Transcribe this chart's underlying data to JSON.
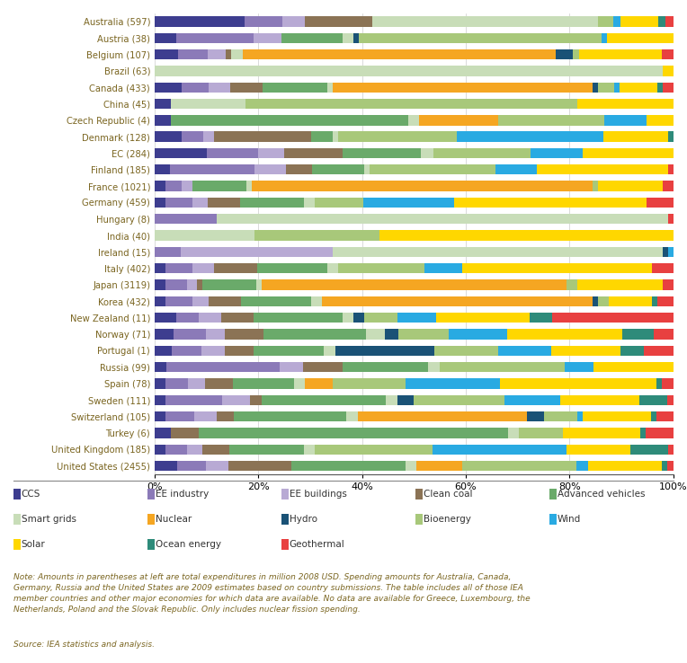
{
  "countries": [
    "Australia (597)",
    "Austria (38)",
    "Belgium (107)",
    "Brazil (63)",
    "Canada (433)",
    "China (45)",
    "Czech Republic (4)",
    "Denmark (128)",
    "EC (284)",
    "Finland (185)",
    "France (1021)",
    "Germany (459)",
    "Hungary (8)",
    "India (40)",
    "Ireland (15)",
    "Italy (402)",
    "Japan (3119)",
    "Korea (432)",
    "New Zealand (11)",
    "Norway (71)",
    "Portugal (1)",
    "Russia (99)",
    "Spain (78)",
    "Sweden (111)",
    "Switzerland (105)",
    "Turkey (6)",
    "United Kingdom (185)",
    "United States (2455)"
  ],
  "categories": [
    "CCS",
    "EE industry",
    "EE buildings",
    "Clean coal",
    "Advanced vehicles",
    "Smart grids",
    "Nuclear",
    "Hydro",
    "Bioenergy",
    "Wind",
    "Solar",
    "Ocean energy",
    "Geothermal"
  ],
  "colors": [
    "#3d3d8f",
    "#8b7ab8",
    "#b8aad4",
    "#8b7355",
    "#6aaa6a",
    "#c8ddb8",
    "#f5a622",
    "#1a5276",
    "#a8c87a",
    "#29aae2",
    "#ffd700",
    "#2e8b7a",
    "#e84040"
  ],
  "data": {
    "Australia (597)": [
      12,
      5,
      3,
      9,
      0,
      30,
      0,
      0,
      2,
      1,
      5,
      1,
      1
    ],
    "Austria (38)": [
      4,
      14,
      5,
      0,
      11,
      2,
      0,
      1,
      44,
      1,
      12,
      0,
      0
    ],
    "Belgium (107)": [
      4,
      5,
      3,
      1,
      0,
      2,
      53,
      3,
      1,
      0,
      14,
      0,
      2
    ],
    "Brazil (63)": [
      0,
      0,
      0,
      0,
      0,
      97,
      0,
      0,
      0,
      0,
      2,
      0,
      0
    ],
    "Canada (433)": [
      5,
      5,
      4,
      6,
      12,
      1,
      48,
      1,
      3,
      1,
      7,
      1,
      2
    ],
    "China (45)": [
      3,
      0,
      0,
      0,
      0,
      14,
      0,
      0,
      62,
      0,
      18,
      0,
      0
    ],
    "Czech Republic (4)": [
      3,
      0,
      0,
      0,
      45,
      2,
      15,
      0,
      20,
      8,
      5,
      0,
      0
    ],
    "Denmark (128)": [
      5,
      4,
      2,
      18,
      4,
      1,
      0,
      0,
      22,
      27,
      12,
      1,
      0
    ],
    "EC (284)": [
      8,
      8,
      4,
      9,
      12,
      2,
      0,
      0,
      15,
      8,
      14,
      0,
      0
    ],
    "Finland (185)": [
      3,
      16,
      6,
      5,
      10,
      1,
      0,
      0,
      24,
      8,
      25,
      0,
      1
    ],
    "France (1021)": [
      2,
      3,
      2,
      0,
      10,
      1,
      63,
      0,
      1,
      0,
      12,
      0,
      2
    ],
    "Germany (459)": [
      2,
      5,
      3,
      6,
      12,
      2,
      0,
      0,
      9,
      17,
      36,
      0,
      5
    ],
    "Hungary (8)": [
      0,
      12,
      0,
      0,
      0,
      87,
      0,
      0,
      0,
      0,
      0,
      0,
      1
    ],
    "India (40)": [
      0,
      0,
      0,
      0,
      0,
      19,
      0,
      0,
      24,
      0,
      56,
      0,
      0
    ],
    "Ireland (15)": [
      0,
      5,
      29,
      0,
      0,
      63,
      0,
      1,
      0,
      1,
      0,
      0,
      0
    ],
    "Italy (402)": [
      2,
      5,
      4,
      8,
      13,
      2,
      0,
      0,
      16,
      7,
      35,
      0,
      4
    ],
    "Japan (3119)": [
      2,
      4,
      2,
      1,
      10,
      1,
      57,
      0,
      2,
      0,
      16,
      0,
      2
    ],
    "Korea (432)": [
      2,
      5,
      3,
      6,
      13,
      2,
      50,
      1,
      2,
      0,
      8,
      1,
      3
    ],
    "New Zealand (11)": [
      4,
      4,
      4,
      6,
      16,
      2,
      0,
      2,
      6,
      7,
      17,
      4,
      22
    ],
    "Norway (71)": [
      3,
      5,
      3,
      6,
      16,
      3,
      0,
      2,
      8,
      9,
      18,
      5,
      3
    ],
    "Portugal (1)": [
      3,
      5,
      4,
      5,
      12,
      2,
      0,
      17,
      11,
      9,
      12,
      4,
      5
    ],
    "Russia (99)": [
      2,
      20,
      4,
      7,
      15,
      2,
      0,
      0,
      22,
      5,
      14,
      0,
      0
    ],
    "Spain (78)": [
      2,
      4,
      3,
      5,
      11,
      2,
      5,
      0,
      13,
      17,
      28,
      1,
      2
    ],
    "Sweden (111)": [
      2,
      10,
      5,
      2,
      22,
      2,
      0,
      3,
      16,
      10,
      14,
      5,
      1
    ],
    "Switzerland (105)": [
      2,
      5,
      4,
      3,
      20,
      2,
      30,
      3,
      6,
      1,
      12,
      1,
      3
    ],
    "Turkey (6)": [
      3,
      0,
      0,
      5,
      56,
      2,
      0,
      0,
      8,
      0,
      14,
      1,
      5
    ],
    "United Kingdom (185)": [
      2,
      4,
      3,
      5,
      14,
      2,
      0,
      0,
      22,
      25,
      12,
      7,
      1
    ],
    "United States (2455)": [
      4,
      5,
      4,
      11,
      20,
      2,
      8,
      0,
      20,
      2,
      13,
      1,
      1
    ]
  },
  "background_color": "#ffffff",
  "text_color": "#7a6520",
  "legend_text_color": "#333333",
  "note_text": "Note: Amounts in parentheses at left are total expenditures in million 2008 USD. Spending amounts for Australia, Canada,\nGermany, Russia and the United States are 2009 estimates based on country submissions. The table includes all of those IEA\nmember countries and other major economies for which data are available. No data are available for Greece, Luxembourg, the\nNetherlands, Poland and the Slovak Republic. Only includes nuclear fission spending.",
  "source_text": "Source: IEA statistics and analysis."
}
